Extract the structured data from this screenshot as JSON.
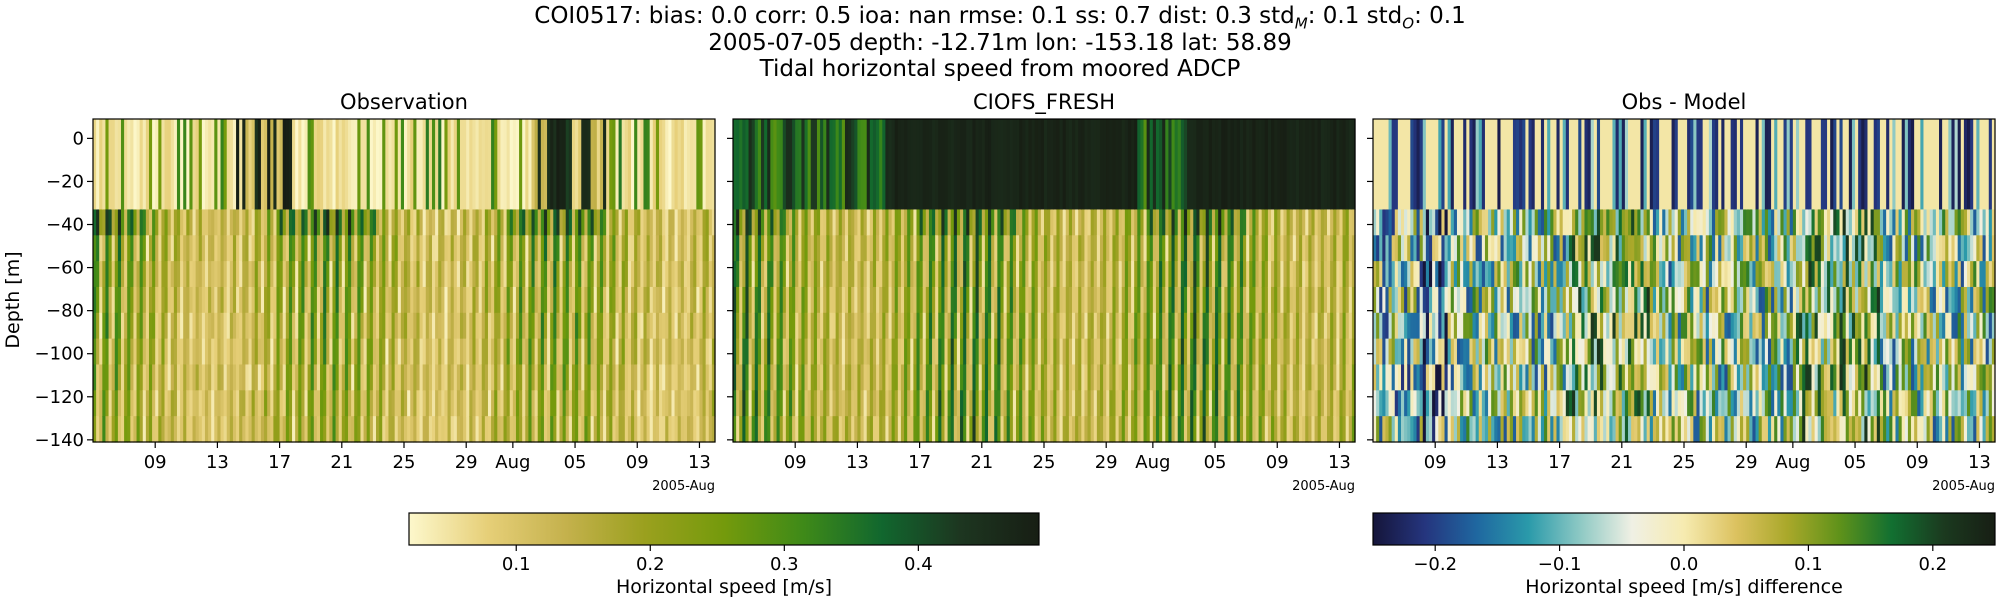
{
  "header": {
    "stats_prefix": "COI0517: bias: 0.0  corr: 0.5  ioa: nan  rmse: 0.1  ss: 0.7  dist: 0.3  std",
    "std_m_sub": "M",
    "std_m_value": ": 0.1  std",
    "std_o_sub": "O",
    "std_o_value": ": 0.1",
    "info_line": "2005-07-05 depth: -12.71m lon: -153.18 lat: 58.89",
    "description": "Tidal horizontal speed from moored ADCP"
  },
  "colors": {
    "speed_cmap": [
      "#fdf8cc",
      "#e6cf78",
      "#c4b14c",
      "#9aa01e",
      "#749a0c",
      "#3f8a18",
      "#11672e",
      "#1d3620",
      "#171e14"
    ],
    "diff_cmap": [
      "#15153a",
      "#25357e",
      "#1f67a0",
      "#2a9aaa",
      "#8ec9c4",
      "#f0f0e4",
      "#f6ebb0",
      "#dcc260",
      "#a9a82a",
      "#5f921a",
      "#127031",
      "#1b3a1f",
      "#171e14"
    ]
  },
  "chart_data": [
    {
      "type": "heatmap",
      "title": "Observation",
      "ylabel": "Depth [m]",
      "xlabel": "",
      "ylim": [
        -141,
        9
      ],
      "yticks": [
        0,
        -20,
        -40,
        -60,
        -80,
        -100,
        -120,
        -140
      ],
      "x_range": [
        "2005-07-05",
        "2005-08-14"
      ],
      "xticks": [
        "09",
        "13",
        "17",
        "21",
        "25",
        "29",
        "Aug",
        "05",
        "09",
        "13"
      ],
      "x_offset_label": "2005-Aug",
      "value_range": [
        0.02,
        0.49
      ],
      "colorbar_label": "Horizontal speed [m/s]",
      "colorbar_ticks": [
        0.1,
        0.2,
        0.3,
        0.4
      ]
    },
    {
      "type": "heatmap",
      "title": "CIOFS_FRESH",
      "ylim": [
        -141,
        9
      ],
      "x_range": [
        "2005-07-05",
        "2005-08-14"
      ],
      "xticks": [
        "09",
        "13",
        "17",
        "21",
        "25",
        "29",
        "Aug",
        "05",
        "09",
        "13"
      ],
      "x_offset_label": "2005-Aug",
      "value_range": [
        0.02,
        0.49
      ]
    },
    {
      "type": "heatmap",
      "title": "Obs - Model",
      "ylim": [
        -141,
        9
      ],
      "x_range": [
        "2005-07-05",
        "2005-08-14"
      ],
      "xticks": [
        "09",
        "13",
        "17",
        "21",
        "25",
        "29",
        "Aug",
        "05",
        "09",
        "13"
      ],
      "x_offset_label": "2005-Aug",
      "value_range": [
        -0.25,
        0.25
      ],
      "colorbar_label": "Horizontal speed [m/s] difference",
      "colorbar_ticks": [
        "−0.2",
        "−0.1",
        "0.0",
        "0.1",
        "0.2"
      ]
    }
  ]
}
